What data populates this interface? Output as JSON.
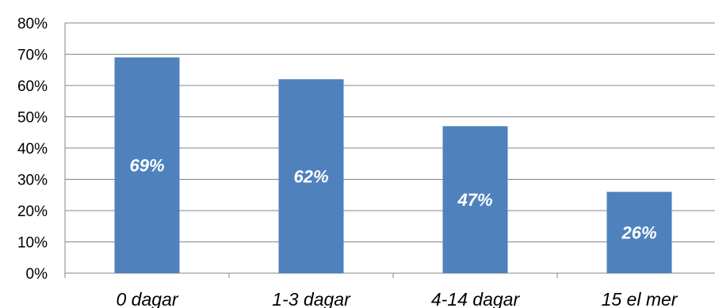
{
  "chart_data": {
    "type": "bar",
    "categories": [
      "0 dagar",
      "1-3 dagar",
      "4-14 dagar",
      "15 el mer"
    ],
    "values": [
      69,
      62,
      47,
      26
    ],
    "data_labels": [
      "69%",
      "62%",
      "47%",
      "26%"
    ],
    "yticks": [
      "0%",
      "10%",
      "20%",
      "30%",
      "40%",
      "50%",
      "60%",
      "70%",
      "80%"
    ],
    "ylim": [
      0,
      80
    ],
    "grid": true,
    "legend": "none",
    "bar_color": "#4f81bd",
    "grid_color": "#868686"
  }
}
